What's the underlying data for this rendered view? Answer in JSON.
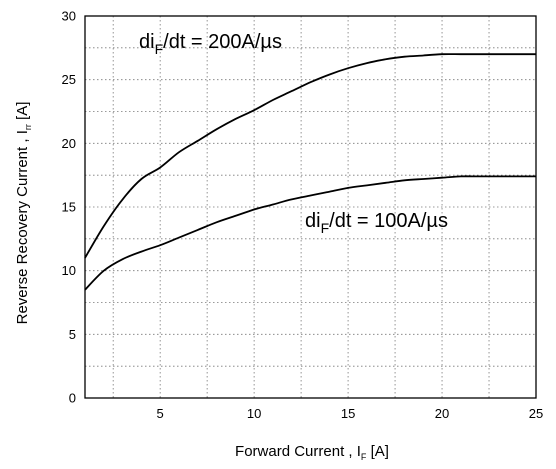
{
  "chart_data": {
    "type": "line",
    "xlabel": "Forward Current , I",
    "xlabel_sub": "F",
    "xlabel_unit": " [A]",
    "ylabel": "Reverse Recovery Current , I",
    "ylabel_sub": "rr",
    "ylabel_unit": " [A]",
    "xlim": [
      1,
      25
    ],
    "ylim": [
      0,
      30
    ],
    "xticks": [
      5,
      10,
      15,
      20,
      25
    ],
    "yticks": [
      0,
      5,
      10,
      15,
      20,
      25,
      30
    ],
    "x_minor_grid": [
      2.5,
      7.5,
      12.5,
      17.5,
      22.5
    ],
    "y_minor_grid": [
      2.5,
      7.5,
      12.5,
      17.5,
      22.5,
      27.5
    ],
    "grid": true,
    "series": [
      {
        "label_main": "di",
        "label_sub": "F",
        "label_rest": "/dt = 200A/µs",
        "x": [
          1,
          2,
          3,
          4,
          5,
          6,
          7,
          8,
          9,
          10,
          11,
          12,
          13,
          14,
          15,
          16,
          17,
          18,
          19,
          20,
          21,
          22,
          23,
          24,
          25
        ],
        "y": [
          11.0,
          13.5,
          15.6,
          17.2,
          18.1,
          19.3,
          20.2,
          21.1,
          21.9,
          22.6,
          23.4,
          24.1,
          24.8,
          25.4,
          25.9,
          26.3,
          26.6,
          26.8,
          26.9,
          27.0,
          27.0,
          27.0,
          27.0,
          27.0,
          27.0
        ]
      },
      {
        "label_main": "di",
        "label_sub": "F",
        "label_rest": "/dt = 100A/µs",
        "x": [
          1,
          2,
          3,
          4,
          5,
          6,
          7,
          8,
          9,
          10,
          11,
          12,
          13,
          14,
          15,
          16,
          17,
          18,
          19,
          20,
          21,
          22,
          23,
          24,
          25
        ],
        "y": [
          8.5,
          10.0,
          10.9,
          11.5,
          12.0,
          12.6,
          13.2,
          13.8,
          14.3,
          14.8,
          15.2,
          15.6,
          15.9,
          16.2,
          16.5,
          16.7,
          16.9,
          17.1,
          17.2,
          17.3,
          17.4,
          17.4,
          17.4,
          17.4,
          17.4
        ]
      }
    ]
  }
}
